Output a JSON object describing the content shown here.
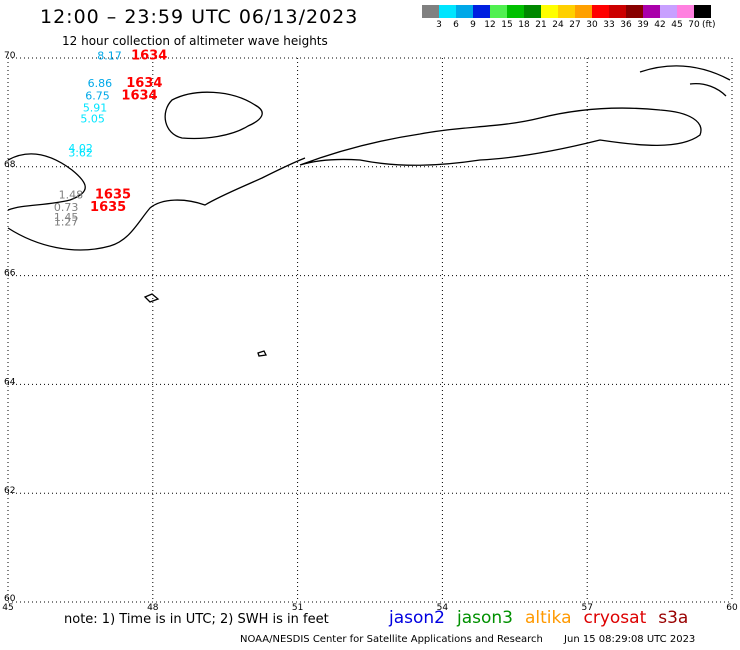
{
  "header": {
    "title": "12:00 – 23:59 UTC 06/13/2023",
    "subtitle": "12 hour collection of altimeter wave heights"
  },
  "legend": {
    "swatches": [
      "#808080",
      "#00e5ff",
      "#00a8e8",
      "#0020e0",
      "#50f050",
      "#00c000",
      "#008800",
      "#ffff00",
      "#ffd000",
      "#ffa000",
      "#ff0000",
      "#cc0000",
      "#880000",
      "#aa00aa",
      "#c8a0ff",
      "#ff80e0",
      "#000000"
    ],
    "labels": [
      "3",
      "6",
      "9",
      "12",
      "15",
      "18",
      "21",
      "24",
      "27",
      "30",
      "33",
      "36",
      "39",
      "42",
      "45",
      "70"
    ],
    "unit": "(ft)"
  },
  "map": {
    "x_axis": {
      "min": 45,
      "max": 60,
      "ticks": [
        "45",
        "48",
        "51",
        "54",
        "57",
        "60"
      ]
    },
    "y_axis": {
      "min": 60,
      "max": 70,
      "ticks": [
        "60",
        "62",
        "64",
        "66",
        "68",
        "70"
      ]
    },
    "observations": [
      {
        "text": "8.17",
        "lon": 46.85,
        "lat": 69.97,
        "color": "#00a8e8"
      },
      {
        "text": "1634",
        "lon": 47.55,
        "lat": 69.97,
        "color": "#ff0000"
      },
      {
        "text": "6.86",
        "lon": 46.65,
        "lat": 69.47,
        "color": "#00a8e8"
      },
      {
        "text": "1634",
        "lon": 47.45,
        "lat": 69.47,
        "color": "#ff0000"
      },
      {
        "text": "6.75",
        "lon": 46.6,
        "lat": 69.24,
        "color": "#00a8e8"
      },
      {
        "text": "1634",
        "lon": 47.35,
        "lat": 69.24,
        "color": "#ff0000"
      },
      {
        "text": "5.91",
        "lon": 46.55,
        "lat": 69.02,
        "color": "#00e5ff"
      },
      {
        "text": "5.05",
        "lon": 46.5,
        "lat": 68.81,
        "color": "#00e5ff"
      },
      {
        "text": "4.02",
        "lon": 46.25,
        "lat": 68.27,
        "color": "#00e5ff"
      },
      {
        "text": "3.62",
        "lon": 46.25,
        "lat": 68.19,
        "color": "#00e5ff"
      },
      {
        "text": "1.48",
        "lon": 46.05,
        "lat": 67.42,
        "color": "#808080"
      },
      {
        "text": "1635",
        "lon": 46.8,
        "lat": 67.42,
        "color": "#ff0000"
      },
      {
        "text": "0.73",
        "lon": 45.95,
        "lat": 67.19,
        "color": "#808080"
      },
      {
        "text": "1635",
        "lon": 46.7,
        "lat": 67.19,
        "color": "#ff0000"
      },
      {
        "text": "1.45",
        "lon": 45.95,
        "lat": 67.0,
        "color": "#808080"
      },
      {
        "text": "1.27",
        "lon": 45.95,
        "lat": 66.92,
        "color": "#808080"
      }
    ]
  },
  "footer": {
    "note": "note:  1) Time is in UTC;  2) SWH is in feet",
    "satellites": [
      {
        "name": "jason2",
        "color": "#0000e0"
      },
      {
        "name": "jason3",
        "color": "#009000"
      },
      {
        "name": "altika",
        "color": "#ff9900"
      },
      {
        "name": "cryosat",
        "color": "#dd0000"
      },
      {
        "name": "s3a",
        "color": "#990000"
      }
    ],
    "credit": "NOAA/NESDIS Center for Satellite Applications and Research",
    "timestamp": "Jun 15 08:29:08 UTC 2023"
  }
}
